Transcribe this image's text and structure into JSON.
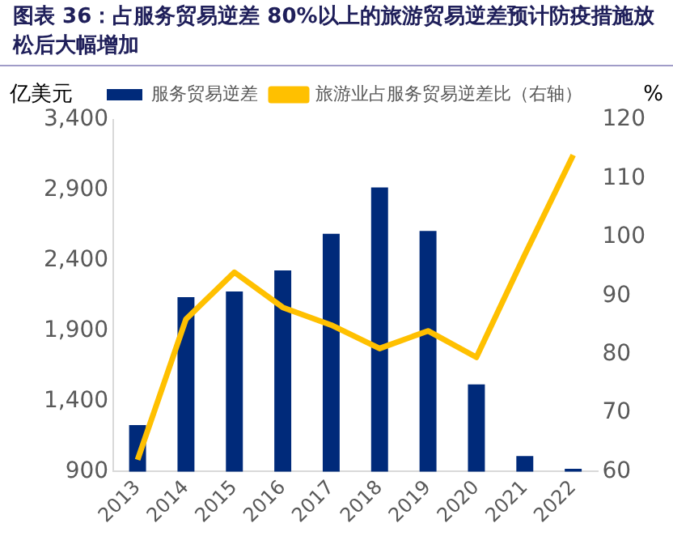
{
  "chart_data": {
    "type": "bar",
    "title": "图表 36：占服务贸易逆差 80%以上的旅游贸易逆差预计防疫措施放松后大幅增加",
    "ylabel": "亿美元",
    "y2label": "%",
    "categories": [
      "2013",
      "2014",
      "2015",
      "2016",
      "2017",
      "2018",
      "2019",
      "2020",
      "2021",
      "2022"
    ],
    "series": [
      {
        "name": "服务贸易逆差",
        "color": "#002a7a",
        "values": [
          1230,
          2140,
          2180,
          2330,
          2590,
          2920,
          2610,
          1520,
          1010,
          920
        ]
      },
      {
        "name": "旅游业占服务贸易逆差比（右轴）",
        "type": "line",
        "axis": "y2",
        "color": "#ffc000",
        "values": [
          62,
          86,
          94,
          88,
          85,
          81,
          84,
          79.5,
          97,
          114
        ]
      }
    ],
    "ylim": [
      900,
      3400
    ],
    "yticks": [
      {
        "value": 900,
        "label": "900"
      },
      {
        "value": 1400,
        "label": "1,400"
      },
      {
        "value": 1900,
        "label": "1,900"
      },
      {
        "value": 2400,
        "label": "2,400"
      },
      {
        "value": 2900,
        "label": "2,900"
      },
      {
        "value": 3400,
        "label": "3,400"
      }
    ],
    "y2lim": [
      60,
      120
    ],
    "y2ticks": [
      60,
      70,
      80,
      90,
      100,
      110,
      120
    ],
    "grid": false,
    "legend": "top",
    "marker": "none"
  }
}
